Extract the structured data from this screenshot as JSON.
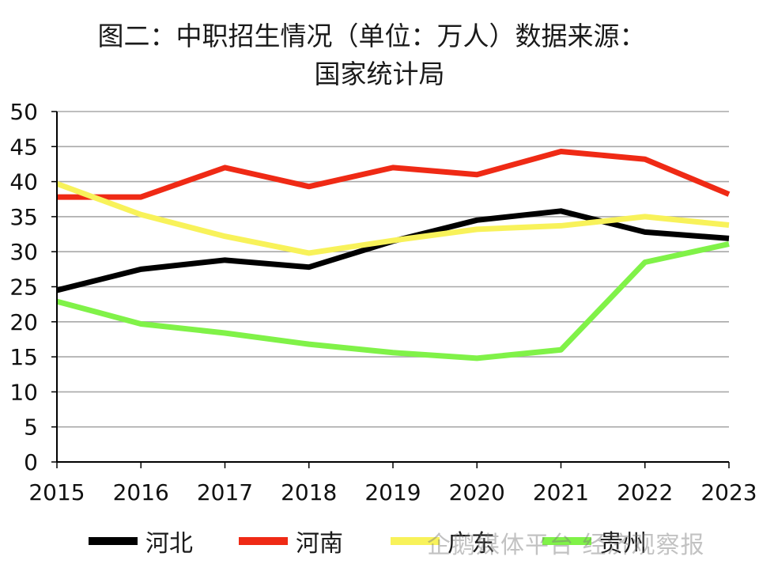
{
  "chart_data": {
    "type": "line",
    "title": "图二：中职招生情况（单位：万人）数据来源：",
    "subtitle": "国家统计局",
    "categories": [
      "2015",
      "2016",
      "2017",
      "2018",
      "2019",
      "2020",
      "2021",
      "2022",
      "2023"
    ],
    "y_ticks": [
      "0",
      "5",
      "10",
      "15",
      "20",
      "25",
      "30",
      "35",
      "40",
      "45",
      "50"
    ],
    "ylim": [
      0,
      50
    ],
    "grid": true,
    "legend_position": "bottom",
    "series": [
      {
        "name": "河北",
        "color": "#000000",
        "values": [
          24.5,
          27.5,
          28.8,
          27.8,
          31.5,
          34.5,
          35.8,
          32.8,
          31.9
        ]
      },
      {
        "name": "河南",
        "color": "#ef2a15",
        "values": [
          37.8,
          37.8,
          42.0,
          39.3,
          42.0,
          41.0,
          44.3,
          43.2,
          38.2
        ]
      },
      {
        "name": "广东",
        "color": "#f8f25a",
        "values": [
          39.7,
          35.3,
          32.2,
          29.8,
          31.6,
          33.2,
          33.7,
          35.0,
          33.8
        ]
      },
      {
        "name": "贵州",
        "color": "#80f248",
        "values": [
          22.9,
          19.7,
          18.4,
          16.8,
          15.6,
          14.8,
          16.0,
          28.5,
          31.1
        ]
      }
    ]
  },
  "watermark": "企鹅媒体平台 经济观察报"
}
